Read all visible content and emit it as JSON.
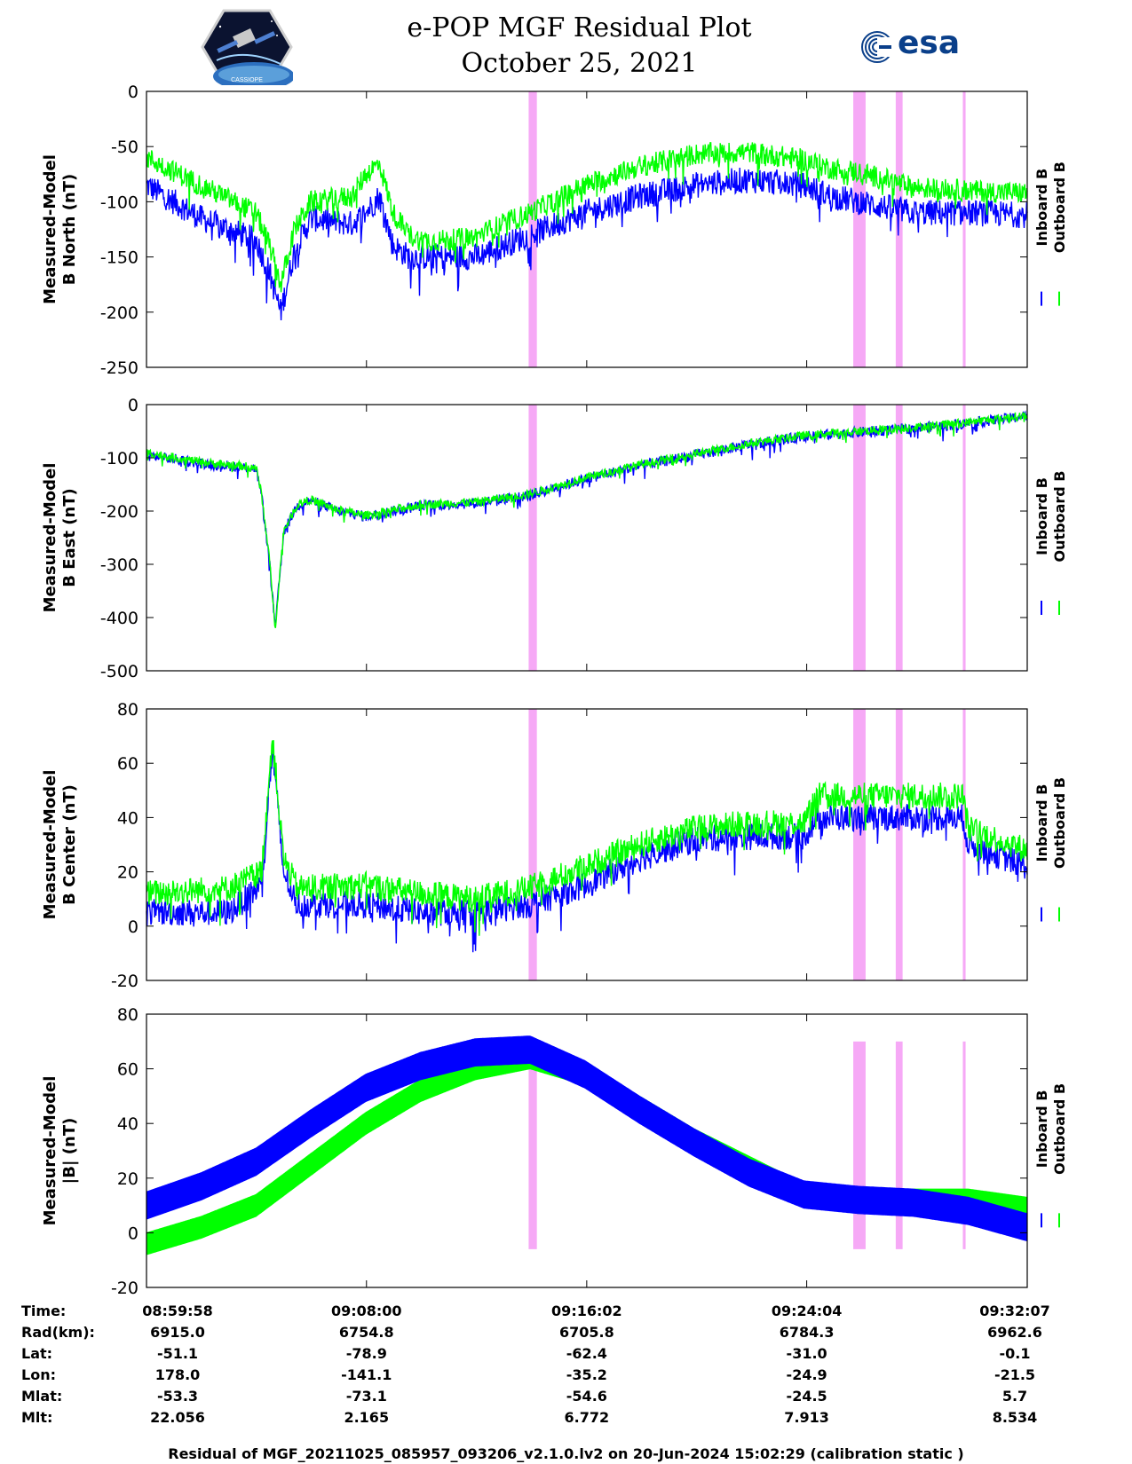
{
  "title": {
    "line1": "e-POP MGF Residual Plot",
    "line2": "October 25, 2021",
    "left_logo_text": "CASSIOPE",
    "right_logo_text": "esa"
  },
  "colors": {
    "inboard": "#0000ff",
    "outboard": "#00ff00",
    "shading": "#f6a9f6"
  },
  "chart_data": [
    {
      "type": "line",
      "id": "north",
      "ylabel": [
        "Measured-Model",
        "B North (nT)"
      ],
      "ylim": [
        -250,
        0
      ],
      "yticks": [
        0,
        -50,
        -100,
        -150,
        -200,
        -250
      ],
      "legend": [
        "Inboard B",
        "Outboard B"
      ],
      "legend_position": "right",
      "x_minutes": [
        0,
        4,
        8.03,
        12,
        16.07,
        20,
        24.1,
        28,
        32.15
      ],
      "series": [
        {
          "name": "Inboard B",
          "color": "#0000ff",
          "noise": 12,
          "x": [
            0,
            2,
            4,
            4.5,
            4.9,
            5.4,
            6,
            7.5,
            8,
            8.5,
            9,
            9.6,
            10,
            11,
            12,
            13,
            14,
            16,
            18,
            20,
            22,
            24,
            25,
            26,
            27,
            28,
            30,
            32.15
          ],
          "values": [
            -85,
            -115,
            -135,
            -165,
            -200,
            -145,
            -115,
            -120,
            -110,
            -95,
            -140,
            -150,
            -150,
            -150,
            -150,
            -140,
            -130,
            -110,
            -95,
            -85,
            -80,
            -85,
            -95,
            -100,
            -105,
            -110,
            -110,
            -112
          ]
        },
        {
          "name": "Outboard B",
          "color": "#00ff00",
          "noise": 10,
          "x": [
            0,
            2,
            4,
            4.5,
            4.9,
            5.4,
            6,
            7.5,
            8,
            8.5,
            9,
            9.6,
            10,
            11,
            12,
            13,
            14,
            16,
            18,
            20,
            22,
            24,
            25,
            26,
            27,
            28,
            30,
            32.15
          ],
          "values": [
            -60,
            -85,
            -110,
            -140,
            -175,
            -125,
            -100,
            -95,
            -75,
            -65,
            -110,
            -130,
            -135,
            -135,
            -132,
            -120,
            -110,
            -85,
            -68,
            -57,
            -55,
            -62,
            -70,
            -73,
            -80,
            -87,
            -90,
            -92
          ]
        }
      ],
      "shaded_x": [
        [
          13.95,
          14.25
        ],
        [
          25.8,
          26.25
        ],
        [
          27.35,
          27.6
        ],
        [
          29.8,
          29.9
        ]
      ],
      "annotation": "filled magenta bands mark flagged intervals"
    },
    {
      "type": "line",
      "id": "east",
      "ylabel": [
        "Measured-Model",
        "B East (nT)"
      ],
      "ylim": [
        -500,
        0
      ],
      "yticks": [
        0,
        -100,
        -200,
        -300,
        -400,
        -500
      ],
      "legend": [
        "Inboard B",
        "Outboard B"
      ],
      "legend_position": "right",
      "series": [
        {
          "name": "Inboard B",
          "color": "#0000ff",
          "noise": 10,
          "x": [
            0,
            2,
            4,
            4.2,
            4.5,
            4.7,
            5.0,
            5.5,
            6,
            7,
            8,
            10,
            12,
            14,
            16,
            18,
            20,
            22,
            24,
            26,
            28,
            30,
            32.15
          ],
          "values": [
            -95,
            -110,
            -120,
            -170,
            -300,
            -420,
            -240,
            -190,
            -180,
            -200,
            -210,
            -190,
            -185,
            -170,
            -140,
            -115,
            -95,
            -75,
            -60,
            -52,
            -45,
            -35,
            -22
          ]
        },
        {
          "name": "Outboard B",
          "color": "#00ff00",
          "noise": 8,
          "x": [
            0,
            2,
            4,
            4.2,
            4.5,
            4.7,
            5.0,
            5.5,
            6,
            7,
            8,
            10,
            12,
            14,
            16,
            18,
            20,
            22,
            24,
            26,
            28,
            30,
            32.15
          ],
          "values": [
            -90,
            -108,
            -118,
            -168,
            -298,
            -418,
            -238,
            -188,
            -178,
            -198,
            -208,
            -188,
            -183,
            -168,
            -138,
            -113,
            -93,
            -73,
            -58,
            -50,
            -43,
            -33,
            -20
          ]
        }
      ],
      "shaded_x": [
        [
          13.95,
          14.25
        ],
        [
          25.8,
          26.25
        ],
        [
          27.35,
          27.6
        ],
        [
          29.8,
          29.9
        ]
      ]
    },
    {
      "type": "line",
      "id": "center",
      "ylabel": [
        "Measured-Model",
        "B Center (nT)"
      ],
      "ylim": [
        -20,
        80
      ],
      "yticks": [
        80,
        60,
        40,
        20,
        0,
        -20
      ],
      "legend": [
        "Inboard B",
        "Outboard B"
      ],
      "legend_position": "right",
      "series": [
        {
          "name": "Inboard B",
          "color": "#0000ff",
          "noise": 5,
          "x": [
            0,
            3,
            4.2,
            4.6,
            5.0,
            5.5,
            8,
            10,
            12,
            14,
            16,
            18,
            20,
            22,
            24,
            24.5,
            28,
            29.8,
            30,
            32.15
          ],
          "values": [
            5,
            5,
            15,
            65,
            20,
            8,
            8,
            5,
            5,
            8,
            15,
            25,
            32,
            33,
            33,
            40,
            40,
            40,
            30,
            22
          ]
        },
        {
          "name": "Outboard B",
          "color": "#00ff00",
          "noise": 5,
          "x": [
            0,
            3,
            4.2,
            4.6,
            5.0,
            5.5,
            8,
            10,
            12,
            14,
            16,
            18,
            20,
            22,
            24,
            24.5,
            28,
            29.8,
            30,
            32.15
          ],
          "values": [
            12,
            14,
            20,
            70,
            25,
            14,
            15,
            12,
            10,
            14,
            22,
            30,
            36,
            38,
            38,
            48,
            48,
            48,
            36,
            28
          ]
        }
      ],
      "shaded_x": [
        [
          13.95,
          14.25
        ],
        [
          25.8,
          26.25
        ],
        [
          27.35,
          27.6
        ],
        [
          29.8,
          29.9
        ]
      ]
    },
    {
      "type": "line",
      "id": "total",
      "ylabel": [
        "Measured-Model",
        "|B| (nT)"
      ],
      "ylim": [
        -20,
        80
      ],
      "yticks": [
        80,
        60,
        40,
        20,
        0,
        -20
      ],
      "legend": [
        "Inboard B",
        "Outboard B"
      ],
      "legend_position": "right",
      "series": [
        {
          "name": "Outboard B",
          "color": "#00ff00",
          "band": 4,
          "x": [
            0,
            2,
            4,
            6,
            8,
            10,
            12,
            14,
            16,
            18,
            20,
            22,
            24,
            26,
            28,
            30,
            32.15
          ],
          "values": [
            -4,
            2,
            10,
            25,
            40,
            52,
            60,
            64,
            58,
            46,
            34,
            24,
            14,
            11,
            12,
            12,
            9
          ]
        },
        {
          "name": "Inboard B",
          "color": "#0000ff",
          "band": 5,
          "x": [
            0,
            2,
            4,
            6,
            8,
            10,
            12,
            14,
            16,
            18,
            20,
            22,
            24,
            26,
            28,
            30,
            32.15
          ],
          "values": [
            10,
            17,
            26,
            40,
            53,
            61,
            66,
            67,
            58,
            45,
            33,
            22,
            14,
            12,
            11,
            8,
            2
          ]
        }
      ],
      "shaded_x": [
        [
          13.95,
          14.25
        ],
        [
          25.8,
          26.25
        ],
        [
          27.35,
          27.6
        ],
        [
          29.8,
          29.9
        ]
      ],
      "shaded_ylim": [
        -6,
        70
      ]
    }
  ],
  "x_axis_table": {
    "labels": [
      "Time:",
      "Rad(km):",
      "Lat:",
      "Lon:",
      "Mlat:",
      "Mlt:"
    ],
    "columns": [
      [
        "08:59:58",
        "6915.0",
        "-51.1",
        "178.0",
        "-53.3",
        "22.056"
      ],
      [
        "09:08:00",
        "6754.8",
        "-78.9",
        "-141.1",
        "-73.1",
        "2.165"
      ],
      [
        "09:16:02",
        "6705.8",
        "-62.4",
        "-35.2",
        "-54.6",
        "6.772"
      ],
      [
        "09:24:04",
        "6784.3",
        "-31.0",
        "-24.9",
        "-24.5",
        "7.913"
      ],
      [
        "09:32:07",
        "6962.6",
        "-0.1",
        "-21.5",
        "5.7",
        "8.534"
      ]
    ]
  },
  "footer": "Residual of MGF_20211025_085957_093206_v2.1.0.lv2 on 20-Jun-2024 15:02:29 (calibration static )"
}
